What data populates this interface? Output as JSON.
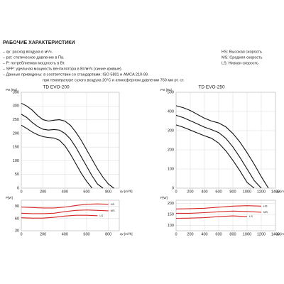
{
  "header": {
    "title": "РАБОЧИЕ ХАРАКТЕРИСТИКИ",
    "notes": [
      "– qv: расход воздуха в м³/ч.",
      "– pst: статическое давление в Па.",
      "– P: потребляемая мощность в Вт.",
      "– SFP: удельная мощность вентилятора в Вт/м³/с (синие кривые).",
      "– Данные приведены: в соответствии со стандартами: ISO 5801 и AMCA 210-99.",
      "при температуре сухого воздуха 20°C и атмосферном давлении 760 мм рт. ст."
    ],
    "speeds": [
      "HS: Высокая скорость",
      "MS: Средняя скорость",
      "LS: Низкая скорость"
    ]
  },
  "chart_data": [
    {
      "type": "line",
      "title": "TD EVO-200",
      "ylabel": "Pst [Pa]",
      "xlabel": "qv [m³/h]",
      "x": [
        0,
        50,
        100,
        150,
        200,
        250,
        300,
        350,
        400,
        450,
        500,
        550,
        600,
        650,
        700,
        750,
        800,
        850
      ],
      "xlim": [
        0,
        900
      ],
      "xticks": [
        0,
        200,
        400,
        600,
        800
      ],
      "ylim": [
        0,
        350
      ],
      "yticks": [
        0,
        50,
        100,
        150,
        200,
        250,
        300,
        350
      ],
      "grid": true,
      "series": [
        {
          "color": "#111111",
          "values": [
            310,
            300,
            285,
            265,
            250,
            245,
            248,
            250,
            245,
            230,
            205,
            175,
            140,
            105,
            70,
            40,
            15,
            0
          ]
        },
        {
          "color": "#111111",
          "values": [
            270,
            258,
            240,
            225,
            215,
            212,
            214,
            212,
            200,
            180,
            150,
            115,
            80,
            45,
            15,
            0,
            null,
            null
          ]
        },
        {
          "color": "#111111",
          "values": [
            230,
            218,
            205,
            195,
            188,
            185,
            183,
            175,
            155,
            125,
            90,
            55,
            25,
            0,
            null,
            null,
            null,
            null
          ]
        }
      ]
    },
    {
      "type": "line",
      "ylabel": "P[W]",
      "xlabel": "qv [m³/h]",
      "x": [
        0,
        100,
        200,
        300,
        400,
        500,
        600,
        700,
        800
      ],
      "xlim": [
        0,
        900
      ],
      "xticks": [
        0,
        200,
        400,
        600,
        800
      ],
      "ylim": [
        30,
        105
      ],
      "yticks": [
        30,
        60,
        90
      ],
      "grid": true,
      "series": [
        {
          "name": "HS",
          "color": "#d62728",
          "values": [
            88,
            87,
            86,
            86,
            88,
            92,
            95,
            96,
            95
          ]
        },
        {
          "name": "MS",
          "color": "#d62728",
          "values": [
            73,
            72,
            72,
            73,
            77,
            80,
            81,
            80,
            79
          ]
        },
        {
          "name": "LS",
          "color": "#d62728",
          "values": [
            62,
            61,
            61,
            63,
            66,
            68,
            68,
            67,
            null
          ]
        }
      ]
    },
    {
      "type": "line",
      "title": "TD EVO-250",
      "ylabel": "Pst [Pa]",
      "xlabel": "qv [m³/h]",
      "x": [
        0,
        100,
        200,
        300,
        400,
        500,
        600,
        700,
        800,
        900,
        1000,
        1100,
        1200,
        1300
      ],
      "xlim": [
        0,
        1400
      ],
      "xticks": [
        0,
        200,
        400,
        600,
        800,
        1000,
        1200,
        1400
      ],
      "ylim": [
        0,
        500
      ],
      "yticks": [
        0,
        100,
        200,
        300,
        400,
        500
      ],
      "grid": true,
      "series": [
        {
          "color": "#111111",
          "values": [
            430,
            420,
            405,
            385,
            365,
            350,
            340,
            320,
            285,
            240,
            185,
            125,
            60,
            0
          ]
        },
        {
          "color": "#111111",
          "values": [
            380,
            368,
            352,
            335,
            318,
            305,
            290,
            260,
            215,
            160,
            100,
            40,
            0,
            null
          ]
        },
        {
          "color": "#111111",
          "values": [
            330,
            318,
            303,
            288,
            273,
            260,
            235,
            195,
            145,
            90,
            30,
            0,
            null,
            null
          ]
        }
      ]
    },
    {
      "type": "line",
      "ylabel": "P[W]",
      "xlabel": "qv [m³/h]",
      "x": [
        0,
        200,
        400,
        600,
        800,
        1000,
        1200
      ],
      "xlim": [
        0,
        1400
      ],
      "xticks": [
        0,
        200,
        400,
        600,
        800,
        1000,
        1200,
        1400
      ],
      "ylim": [
        75,
        215
      ],
      "yticks": [
        100,
        150,
        200
      ],
      "grid": true,
      "series": [
        {
          "name": "HS",
          "color": "#d62728",
          "values": [
            175,
            176,
            178,
            183,
            188,
            190,
            188
          ]
        },
        {
          "name": "MS",
          "color": "#d62728",
          "values": [
            155,
            155,
            158,
            162,
            165,
            163,
            160
          ]
        },
        {
          "name": "LS",
          "color": "#d62728",
          "values": [
            132,
            133,
            135,
            140,
            143,
            140,
            null
          ]
        }
      ]
    }
  ]
}
